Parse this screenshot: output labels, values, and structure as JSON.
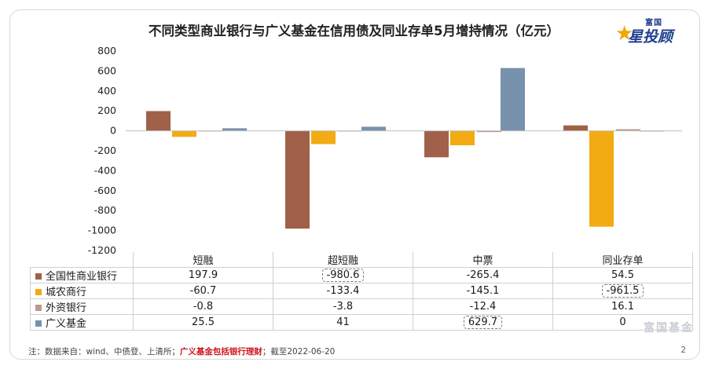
{
  "title": "不同类型商业银行与广义基金在信用债及同业存单5月增持情况（亿元）",
  "logo": {
    "top": "富国",
    "main": "星投顾"
  },
  "watermark": "富国基金",
  "note": {
    "prefix": "注：数据来自：wind、中债登、上清所；",
    "highlight": "广义基金包括银行理财",
    "suffix": "；截至2022-06-20"
  },
  "page_number": "2",
  "colors": {
    "全国性商业银行": "#a0604a",
    "城农商行": "#f2ab12",
    "外资银行": "#b89a8c",
    "广义基金": "#7891ad"
  },
  "chart_data": {
    "type": "bar",
    "categories": [
      "短融",
      "超短融",
      "中票",
      "同业存单"
    ],
    "series": [
      {
        "name": "全国性商业银行",
        "values": [
          197.9,
          -980.6,
          -265.4,
          54.5
        ],
        "labels": [
          "197.9",
          "-980.6",
          "-265.4",
          "54.5"
        ]
      },
      {
        "name": "城农商行",
        "values": [
          -60.7,
          -133.4,
          -145.1,
          -961.5
        ],
        "labels": [
          "-60.7",
          "-133.4",
          "-145.1",
          "-961.5"
        ]
      },
      {
        "name": "外资银行",
        "values": [
          -0.8,
          -3.8,
          -12.4,
          16.1
        ],
        "labels": [
          "-0.8",
          "-3.8",
          "-12.4",
          "16.1"
        ]
      },
      {
        "name": "广义基金",
        "values": [
          25.5,
          41,
          629.7,
          0
        ],
        "labels": [
          "25.5",
          "41",
          "629.7",
          "0"
        ]
      }
    ],
    "ylim": [
      -1200,
      800
    ],
    "yticks": [
      "800",
      "600",
      "400",
      "200",
      "0",
      "-200",
      "-400",
      "-600",
      "-800",
      "-1000",
      "-1200"
    ],
    "ytick_values": [
      800,
      600,
      400,
      200,
      0,
      -200,
      -400,
      -600,
      -800,
      -1000,
      -1200
    ],
    "highlighted_cells": [
      [
        0,
        1
      ],
      [
        1,
        3
      ],
      [
        3,
        2
      ]
    ],
    "legend": "data-table",
    "grid": false
  }
}
